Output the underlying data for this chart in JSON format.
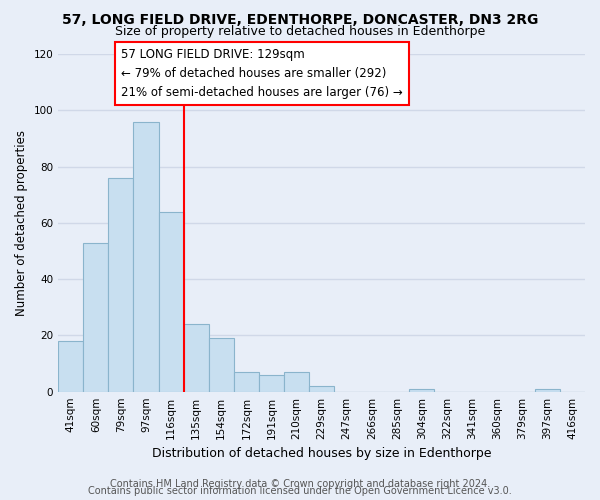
{
  "title": "57, LONG FIELD DRIVE, EDENTHORPE, DONCASTER, DN3 2RG",
  "subtitle": "Size of property relative to detached houses in Edenthorpe",
  "xlabel": "Distribution of detached houses by size in Edenthorpe",
  "ylabel": "Number of detached properties",
  "bar_color": "#c8dff0",
  "bar_edge_color": "#8ab4cc",
  "categories": [
    "41sqm",
    "60sqm",
    "79sqm",
    "97sqm",
    "116sqm",
    "135sqm",
    "154sqm",
    "172sqm",
    "191sqm",
    "210sqm",
    "229sqm",
    "247sqm",
    "266sqm",
    "285sqm",
    "304sqm",
    "322sqm",
    "341sqm",
    "360sqm",
    "379sqm",
    "397sqm",
    "416sqm"
  ],
  "values": [
    18,
    53,
    76,
    96,
    64,
    24,
    19,
    7,
    6,
    7,
    2,
    0,
    0,
    0,
    1,
    0,
    0,
    0,
    0,
    1,
    0
  ],
  "ylim": [
    0,
    120
  ],
  "yticks": [
    0,
    20,
    40,
    60,
    80,
    100,
    120
  ],
  "property_line_label": "57 LONG FIELD DRIVE: 129sqm",
  "annotation_line1": "← 79% of detached houses are smaller (292)",
  "annotation_line2": "21% of semi-detached houses are larger (76) →",
  "footer1": "Contains HM Land Registry data © Crown copyright and database right 2024.",
  "footer2": "Contains public sector information licensed under the Open Government Licence v3.0.",
  "background_color": "#e8eef8",
  "grid_color": "#d0d8e8",
  "title_fontsize": 10,
  "subtitle_fontsize": 9,
  "xlabel_fontsize": 9,
  "ylabel_fontsize": 8.5,
  "footer_fontsize": 7,
  "tick_fontsize": 7.5,
  "annotation_fontsize": 8.5
}
